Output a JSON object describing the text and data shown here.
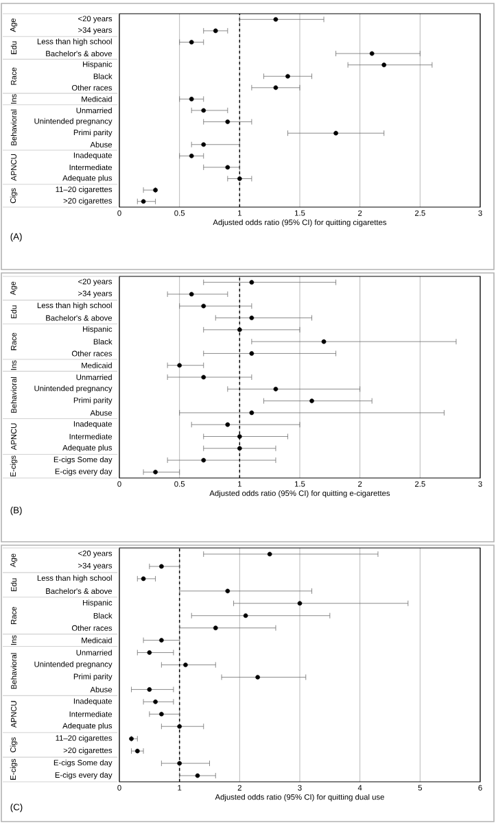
{
  "chart_data": [
    {
      "type": "scatter",
      "orientation": "horizontal",
      "color": "#000000",
      "marker": "circle",
      "grid": "x",
      "xlabel": "Adjusted odds ratio (95% CI) for quitting cigarettes",
      "categories": [
        "<20 years",
        ">34 years",
        "Less than high school",
        "Bachelor's & above",
        "Hispanic",
        "Black",
        "Other races",
        "Medicaid",
        "Unmarried",
        "Unintended pregnancy",
        "Primi parity",
        "Abuse",
        "Inadequate",
        "Intermediate",
        "Adequate plus",
        "11–20 cigarettes",
        ">20 cigarettes"
      ],
      "values": [
        1.3,
        0.8,
        0.6,
        2.1,
        2.2,
        1.4,
        1.3,
        0.6,
        0.7,
        0.9,
        1.8,
        0.7,
        0.6,
        0.9,
        1.0,
        0.3,
        0.2
      ],
      "errors": [
        [
          1.0,
          1.7
        ],
        [
          0.7,
          0.9
        ],
        [
          0.5,
          0.7
        ],
        [
          1.8,
          2.5
        ],
        [
          1.9,
          2.6
        ],
        [
          1.2,
          1.6
        ],
        [
          1.1,
          1.5
        ],
        [
          0.5,
          0.7
        ],
        [
          0.6,
          0.9
        ],
        [
          0.7,
          1.1
        ],
        [
          1.4,
          2.2
        ],
        [
          0.6,
          1.0
        ],
        [
          0.5,
          0.7
        ],
        [
          0.7,
          1.0
        ],
        [
          0.9,
          1.1
        ],
        [
          0.2,
          0.3
        ],
        [
          0.15,
          0.3
        ]
      ],
      "xlim": [
        0,
        3
      ],
      "xticks": [
        0,
        0.5,
        1,
        1.5,
        2,
        2.5,
        3
      ],
      "ref_lines": [
        {
          "axis": "x",
          "value": 1,
          "line_style": "dashed",
          "color": "#000000"
        }
      ],
      "annotations": [
        "Age",
        "Edu",
        "Race",
        "Ins",
        "Behavioral",
        "APNCU",
        "Cigs",
        "(A)"
      ]
    },
    {
      "type": "scatter",
      "orientation": "horizontal",
      "color": "#000000",
      "marker": "circle",
      "grid": "x",
      "xlabel": "Adjusted odds ratio (95% CI) for quitting e-cigarettes",
      "categories": [
        "<20 years",
        ">34 years",
        "Less than high school",
        "Bachelor's & above",
        "Hispanic",
        "Black",
        "Other races",
        "Medicaid",
        "Unmarried",
        "Unintended pregnancy",
        "Primi parity",
        "Abuse",
        "Inadequate",
        "Intermediate",
        "Adequate plus",
        "E-cigs Some day",
        "E-cigs every day"
      ],
      "values": [
        1.1,
        0.6,
        0.7,
        1.1,
        1.0,
        1.7,
        1.1,
        0.5,
        0.7,
        1.3,
        1.6,
        1.1,
        0.9,
        1.0,
        1.0,
        0.7,
        0.3
      ],
      "errors": [
        [
          0.7,
          1.8
        ],
        [
          0.4,
          0.9
        ],
        [
          0.5,
          1.1
        ],
        [
          0.8,
          1.6
        ],
        [
          0.7,
          1.5
        ],
        [
          1.1,
          2.8
        ],
        [
          0.7,
          1.8
        ],
        [
          0.4,
          0.7
        ],
        [
          0.4,
          1.1
        ],
        [
          0.9,
          2.0
        ],
        [
          1.2,
          2.1
        ],
        [
          0.5,
          2.7
        ],
        [
          0.6,
          1.5
        ],
        [
          0.7,
          1.4
        ],
        [
          0.7,
          1.3
        ],
        [
          0.4,
          1.3
        ],
        [
          0.2,
          0.5
        ]
      ],
      "xlim": [
        0,
        3
      ],
      "xticks": [
        0,
        0.5,
        1,
        1.5,
        2,
        2.5,
        3
      ],
      "ref_lines": [
        {
          "axis": "x",
          "value": 1,
          "line_style": "dashed",
          "color": "#000000"
        }
      ],
      "annotations": [
        "Age",
        "Edu",
        "Race",
        "Ins",
        "Behavioral",
        "APNCU",
        "E-cigs",
        "(B)"
      ]
    },
    {
      "type": "scatter",
      "orientation": "horizontal",
      "color": "#000000",
      "marker": "circle",
      "grid": "x",
      "xlabel": "Adjusted odds ratio (95% CI) for quitting dual use",
      "categories": [
        "<20 years",
        ">34 years",
        "Less than high school",
        "Bachelor's & above",
        "Hispanic",
        "Black",
        "Other races",
        "Medicaid",
        "Unmarried",
        "Unintended pregnancy",
        "Primi parity",
        "Abuse",
        "Inadequate",
        "Intermediate",
        "Adequate plus",
        "11–20 cigarettes",
        ">20 cigarettes",
        "E-cigs Some day",
        "E-cigs every day"
      ],
      "values": [
        2.5,
        0.7,
        0.4,
        1.8,
        3.0,
        2.1,
        1.6,
        0.7,
        0.5,
        1.1,
        2.3,
        0.5,
        0.6,
        0.7,
        1.0,
        0.2,
        0.3,
        1.0,
        1.3
      ],
      "errors": [
        [
          1.4,
          4.3
        ],
        [
          0.5,
          1.0
        ],
        [
          0.3,
          0.6
        ],
        [
          1.0,
          3.2
        ],
        [
          1.9,
          4.8
        ],
        [
          1.2,
          3.5
        ],
        [
          1.0,
          2.6
        ],
        [
          0.4,
          1.0
        ],
        [
          0.3,
          0.9
        ],
        [
          0.7,
          1.6
        ],
        [
          1.7,
          3.1
        ],
        [
          0.2,
          0.9
        ],
        [
          0.4,
          0.9
        ],
        [
          0.5,
          1.0
        ],
        [
          0.7,
          1.4
        ],
        [
          0.2,
          0.3
        ],
        [
          0.2,
          0.4
        ],
        [
          0.7,
          1.5
        ],
        [
          1.0,
          1.6
        ]
      ],
      "xlim": [
        0,
        6
      ],
      "xticks": [
        0,
        1,
        2,
        3,
        4,
        5,
        6
      ],
      "ref_lines": [
        {
          "axis": "x",
          "value": 1,
          "line_style": "dashed",
          "color": "#000000"
        }
      ],
      "annotations": [
        "Age",
        "Edu",
        "Race",
        "Ins",
        "Behavioral",
        "APNCU",
        "Cigs",
        "E-cigs",
        "(C)"
      ]
    }
  ]
}
